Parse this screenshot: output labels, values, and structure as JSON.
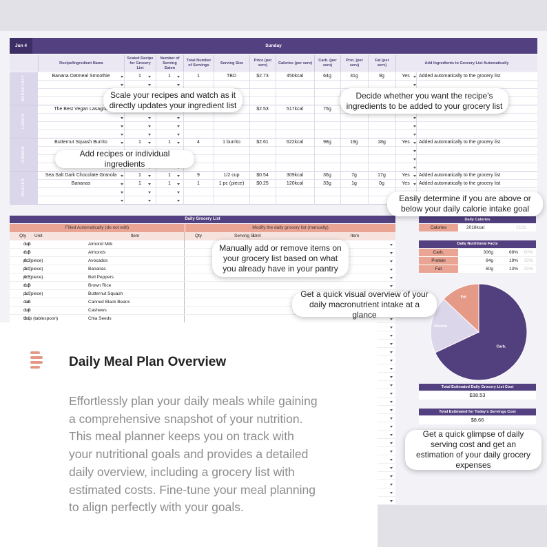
{
  "header": {
    "date": "Jun 4",
    "day": "Sunday"
  },
  "meal_table": {
    "columns": [
      "Recipe/Ingredient Name",
      "Scaled Recipe for Grocery List",
      "Number of Serving Eaten",
      "Total Number of Servings",
      "Serving Size",
      "Price (per serv)",
      "Calories (per serv)",
      "Carb. (per serv)",
      "Prot. (per serv)",
      "Fat (per serv)",
      "Add Ingredients to Grocery List Automatically"
    ],
    "sections": [
      {
        "label": "BREAKFAST",
        "rows": [
          [
            "Banana Oatmeal Smoothie",
            "1",
            "1",
            "1",
            "TBD",
            "$2.73",
            "450kcal",
            "64g",
            "31g",
            "9g",
            "Yes",
            "Added automatically to the grocery list"
          ]
        ]
      },
      {
        "label": "LUNCH",
        "rows": [
          [
            "The Best Vegan Lasagna",
            null,
            null,
            null,
            null,
            "$2.53",
            "517kcal",
            "75g",
            null,
            null,
            null,
            null
          ]
        ]
      },
      {
        "label": "DINNER",
        "rows": [
          [
            "Butternut Squash Burrito",
            "1",
            "1",
            "4",
            "1 burrito",
            "$2.61",
            "622kcal",
            "98g",
            "19g",
            "18g",
            "Yes",
            "Added automatically to the grocery list"
          ]
        ]
      },
      {
        "label": "SNACKS",
        "rows": [
          [
            "Sea Salt Dark Chocolate Granola",
            "1",
            "1",
            "9",
            "1/2 cup",
            "$0.54",
            "309kcal",
            "36g",
            "7g",
            "17g",
            "Yes",
            "Added automatically to the grocery list"
          ],
          [
            "Bananas",
            "1",
            "1",
            "1",
            "1 pc (piece)",
            "$0.25",
            "120kcal",
            "33g",
            "1g",
            "0g",
            "Yes",
            "Added automatically to the grocery list"
          ]
        ]
      }
    ]
  },
  "grocery": {
    "title": "Daily Grocery List",
    "auto_header": "Filled Automatically (do not edit)",
    "manual_header": "Modify the daily grocery list (manually)",
    "auto_columns": [
      "Qty",
      "Unit",
      "Item"
    ],
    "manual_columns": [
      "Qty",
      "Serving Size",
      "Unit",
      "Item"
    ],
    "rows": [
      [
        "1.0",
        "cup",
        "Almond Milk"
      ],
      [
        "0.5",
        "cup",
        "Almonds"
      ],
      [
        "0.3",
        "pc (piece)",
        "Avocados"
      ],
      [
        "2.0",
        "pc (piece)",
        "Bananas"
      ],
      [
        "0.5",
        "pc (piece)",
        "Bell Peppers"
      ],
      [
        "0.5",
        "cup",
        "Brown Rice"
      ],
      [
        "1.0",
        "pc (piece)",
        "Butternut Squash"
      ],
      [
        "1.0",
        "can",
        "Canned Black Beans"
      ],
      [
        "1.0",
        "cup",
        "Cashews"
      ],
      [
        "2.0",
        "tbsp (tablespoon)",
        "Chia Seeds"
      ]
    ]
  },
  "calories": {
    "title": "Daily Calories",
    "label": "Calories",
    "value": "2018kcal",
    "goal": "2181"
  },
  "nutrition": {
    "title": "Daily Nutritional Facts",
    "rows": [
      {
        "name": "Carb.",
        "amount": "306g",
        "percent": "68%",
        "target": "60%"
      },
      {
        "name": "Protein",
        "amount": "84g",
        "percent": "19%",
        "target": "15%"
      },
      {
        "name": "Fat",
        "amount": "60g",
        "percent": "13%",
        "target": "25%"
      }
    ],
    "colors": [
      "#52407e",
      "#dcd6ea",
      "#e59a88"
    ]
  },
  "costs": [
    {
      "title": "Total Estimated Daily Grocery List Cost",
      "value": "$38.53"
    },
    {
      "title": "Total Estimated for Today's Servings Cost",
      "value": "$8.66"
    }
  ],
  "callouts": [
    "Scale your recipes and watch as it directly updates your ingredient list",
    "Decide whether you want the recipe's ingredients to be added to your grocery list",
    "Add recipes or individual ingredients",
    "Easily determine if you are above or below your daily calorie intake goal",
    "Manually add or remove items on your grocery list based on what you already have in your pantry",
    "Get a quick visual overview of your daily macronutrient intake at a glance",
    "Get a quick glimpse of daily serving cost and get an estimation of your daily grocery expenses"
  ],
  "overview": {
    "title": "Daily Meal Plan Overview",
    "lines": [
      "Effortlessly plan your daily meals while gaining",
      "a comprehensive snapshot of your nutrition.",
      "This meal planner keeps you on track with",
      "your nutritional goals and provides a detailed",
      "daily overview, including a grocery list with",
      "estimated costs. Fine-tune your meal planning",
      "to align perfectly with your goals."
    ]
  }
}
